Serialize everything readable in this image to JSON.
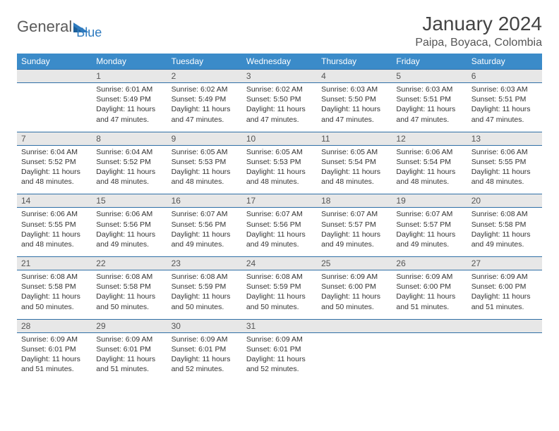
{
  "logo": {
    "text1": "General",
    "text2": "Blue"
  },
  "title": "January 2024",
  "location": "Paipa, Boyaca, Colombia",
  "colors": {
    "header_bg": "#3b8bc9",
    "header_text": "#ffffff",
    "daynum_bg": "#e7e7e7",
    "border": "#2f6fa6",
    "body_text": "#333333",
    "title_text": "#444444",
    "logo_gray": "#5a5a5a",
    "logo_blue": "#2f7bbf"
  },
  "weekdays": [
    "Sunday",
    "Monday",
    "Tuesday",
    "Wednesday",
    "Thursday",
    "Friday",
    "Saturday"
  ],
  "weeks": [
    [
      {
        "blank": true
      },
      {
        "n": "1",
        "sunrise": "6:01 AM",
        "sunset": "5:49 PM",
        "daylight": "11 hours and 47 minutes."
      },
      {
        "n": "2",
        "sunrise": "6:02 AM",
        "sunset": "5:49 PM",
        "daylight": "11 hours and 47 minutes."
      },
      {
        "n": "3",
        "sunrise": "6:02 AM",
        "sunset": "5:50 PM",
        "daylight": "11 hours and 47 minutes."
      },
      {
        "n": "4",
        "sunrise": "6:03 AM",
        "sunset": "5:50 PM",
        "daylight": "11 hours and 47 minutes."
      },
      {
        "n": "5",
        "sunrise": "6:03 AM",
        "sunset": "5:51 PM",
        "daylight": "11 hours and 47 minutes."
      },
      {
        "n": "6",
        "sunrise": "6:03 AM",
        "sunset": "5:51 PM",
        "daylight": "11 hours and 47 minutes."
      }
    ],
    [
      {
        "n": "7",
        "sunrise": "6:04 AM",
        "sunset": "5:52 PM",
        "daylight": "11 hours and 48 minutes."
      },
      {
        "n": "8",
        "sunrise": "6:04 AM",
        "sunset": "5:52 PM",
        "daylight": "11 hours and 48 minutes."
      },
      {
        "n": "9",
        "sunrise": "6:05 AM",
        "sunset": "5:53 PM",
        "daylight": "11 hours and 48 minutes."
      },
      {
        "n": "10",
        "sunrise": "6:05 AM",
        "sunset": "5:53 PM",
        "daylight": "11 hours and 48 minutes."
      },
      {
        "n": "11",
        "sunrise": "6:05 AM",
        "sunset": "5:54 PM",
        "daylight": "11 hours and 48 minutes."
      },
      {
        "n": "12",
        "sunrise": "6:06 AM",
        "sunset": "5:54 PM",
        "daylight": "11 hours and 48 minutes."
      },
      {
        "n": "13",
        "sunrise": "6:06 AM",
        "sunset": "5:55 PM",
        "daylight": "11 hours and 48 minutes."
      }
    ],
    [
      {
        "n": "14",
        "sunrise": "6:06 AM",
        "sunset": "5:55 PM",
        "daylight": "11 hours and 48 minutes."
      },
      {
        "n": "15",
        "sunrise": "6:06 AM",
        "sunset": "5:56 PM",
        "daylight": "11 hours and 49 minutes."
      },
      {
        "n": "16",
        "sunrise": "6:07 AM",
        "sunset": "5:56 PM",
        "daylight": "11 hours and 49 minutes."
      },
      {
        "n": "17",
        "sunrise": "6:07 AM",
        "sunset": "5:56 PM",
        "daylight": "11 hours and 49 minutes."
      },
      {
        "n": "18",
        "sunrise": "6:07 AM",
        "sunset": "5:57 PM",
        "daylight": "11 hours and 49 minutes."
      },
      {
        "n": "19",
        "sunrise": "6:07 AM",
        "sunset": "5:57 PM",
        "daylight": "11 hours and 49 minutes."
      },
      {
        "n": "20",
        "sunrise": "6:08 AM",
        "sunset": "5:58 PM",
        "daylight": "11 hours and 49 minutes."
      }
    ],
    [
      {
        "n": "21",
        "sunrise": "6:08 AM",
        "sunset": "5:58 PM",
        "daylight": "11 hours and 50 minutes."
      },
      {
        "n": "22",
        "sunrise": "6:08 AM",
        "sunset": "5:58 PM",
        "daylight": "11 hours and 50 minutes."
      },
      {
        "n": "23",
        "sunrise": "6:08 AM",
        "sunset": "5:59 PM",
        "daylight": "11 hours and 50 minutes."
      },
      {
        "n": "24",
        "sunrise": "6:08 AM",
        "sunset": "5:59 PM",
        "daylight": "11 hours and 50 minutes."
      },
      {
        "n": "25",
        "sunrise": "6:09 AM",
        "sunset": "6:00 PM",
        "daylight": "11 hours and 50 minutes."
      },
      {
        "n": "26",
        "sunrise": "6:09 AM",
        "sunset": "6:00 PM",
        "daylight": "11 hours and 51 minutes."
      },
      {
        "n": "27",
        "sunrise": "6:09 AM",
        "sunset": "6:00 PM",
        "daylight": "11 hours and 51 minutes."
      }
    ],
    [
      {
        "n": "28",
        "sunrise": "6:09 AM",
        "sunset": "6:01 PM",
        "daylight": "11 hours and 51 minutes."
      },
      {
        "n": "29",
        "sunrise": "6:09 AM",
        "sunset": "6:01 PM",
        "daylight": "11 hours and 51 minutes."
      },
      {
        "n": "30",
        "sunrise": "6:09 AM",
        "sunset": "6:01 PM",
        "daylight": "11 hours and 52 minutes."
      },
      {
        "n": "31",
        "sunrise": "6:09 AM",
        "sunset": "6:01 PM",
        "daylight": "11 hours and 52 minutes."
      },
      {
        "blank": true
      },
      {
        "blank": true
      },
      {
        "blank": true
      }
    ]
  ],
  "labels": {
    "sunrise": "Sunrise:",
    "sunset": "Sunset:",
    "daylight": "Daylight:"
  }
}
